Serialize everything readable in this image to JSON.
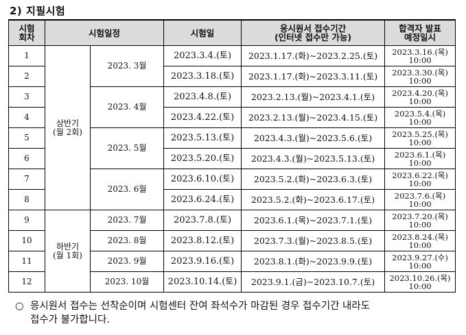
{
  "section_title": "2) 지필시험",
  "headers": {
    "round": [
      "시험",
      "회차"
    ],
    "schedule": "시험일정",
    "exam_date": "시험일",
    "application": [
      "응시원서 접수기간",
      "(인터넷 접수만 가능)"
    ],
    "announcement": [
      "합격자 발표",
      "예정일시"
    ]
  },
  "halves": [
    {
      "label": [
        "상반기",
        "(월 2회)"
      ]
    },
    {
      "label": [
        "하반기",
        "(월 1회)"
      ]
    }
  ],
  "months": [
    "2023. 3월",
    "2023. 4월",
    "2023. 5월",
    "2023. 6월",
    "2023. 7월",
    "2023. 8월",
    "2023. 9월",
    "2023. 10월"
  ],
  "rows": [
    {
      "no": "1",
      "exam": "2023.3.4.(토)",
      "period": "2023.1.17.(화)~2023.2.25.(토)",
      "ann_date": "2023.3.16.(목)",
      "ann_time": "10:00"
    },
    {
      "no": "2",
      "exam": "2023.3.18.(토)",
      "period": "2023.1.17.(화)~2023.3.11.(토)",
      "ann_date": "2023.3.30.(목)",
      "ann_time": "10:00"
    },
    {
      "no": "3",
      "exam": "2023.4.8.(토)",
      "period": "2023.2.13.(월)~2023.4.1.(토)",
      "ann_date": "2023.4.20.(목)",
      "ann_time": "10:00"
    },
    {
      "no": "4",
      "exam": "2023.4.22.(토)",
      "period": "2023.2.13.(월)~2023.4.15.(토)",
      "ann_date": "2023.5.4.(목)",
      "ann_time": "10:00"
    },
    {
      "no": "5",
      "exam": "2023.5.13.(토)",
      "period": "2023.4.3.(월)~2023.5.6.(토)",
      "ann_date": "2023.5.25.(목)",
      "ann_time": "10:00"
    },
    {
      "no": "6",
      "exam": "2023.5.20.(토)",
      "period": "2023.4.3.(월)~2023.5.13.(토)",
      "ann_date": "2023.6.1.(목)",
      "ann_time": "10:00"
    },
    {
      "no": "7",
      "exam": "2023.6.10.(토)",
      "period": "2023.5.2.(화)~2023.6.3.(토)",
      "ann_date": "2023.6.22.(목)",
      "ann_time": "10:00"
    },
    {
      "no": "8",
      "exam": "2023.6.24.(토)",
      "period": "2023.5.2.(화)~2023.6.17.(토)",
      "ann_date": "2023.7.6.(목)",
      "ann_time": "10:00"
    },
    {
      "no": "9",
      "exam": "2023.7.8.(토)",
      "period": "2023.6.1.(목)~2023.7.1.(토)",
      "ann_date": "2023.7.20.(목)",
      "ann_time": "10:00"
    },
    {
      "no": "10",
      "exam": "2023.8.12.(토)",
      "period": "2023.7.3.(월)~2023.8.5.(토)",
      "ann_date": "2023.8.24.(목)",
      "ann_time": "10:00"
    },
    {
      "no": "11",
      "exam": "2023.9.16.(토)",
      "period": "2023.8.1.(화)~2023.9.9.(토)",
      "ann_date": "2023.9.27.(수)",
      "ann_time": "10:00"
    },
    {
      "no": "12",
      "exam": "2023.10.14.(토)",
      "period": "2023.9.1.(금)~2023.10.7.(토)",
      "ann_date": "2023.10.26.(목)",
      "ann_time": "10:00"
    }
  ],
  "notice": {
    "bullet": "○",
    "line1": "응시원서 접수는 선착순이며 시험센터 잔여 좌석수가 마감된 경우 접수기간 내라도",
    "line2": "접수가 불가합니다."
  }
}
